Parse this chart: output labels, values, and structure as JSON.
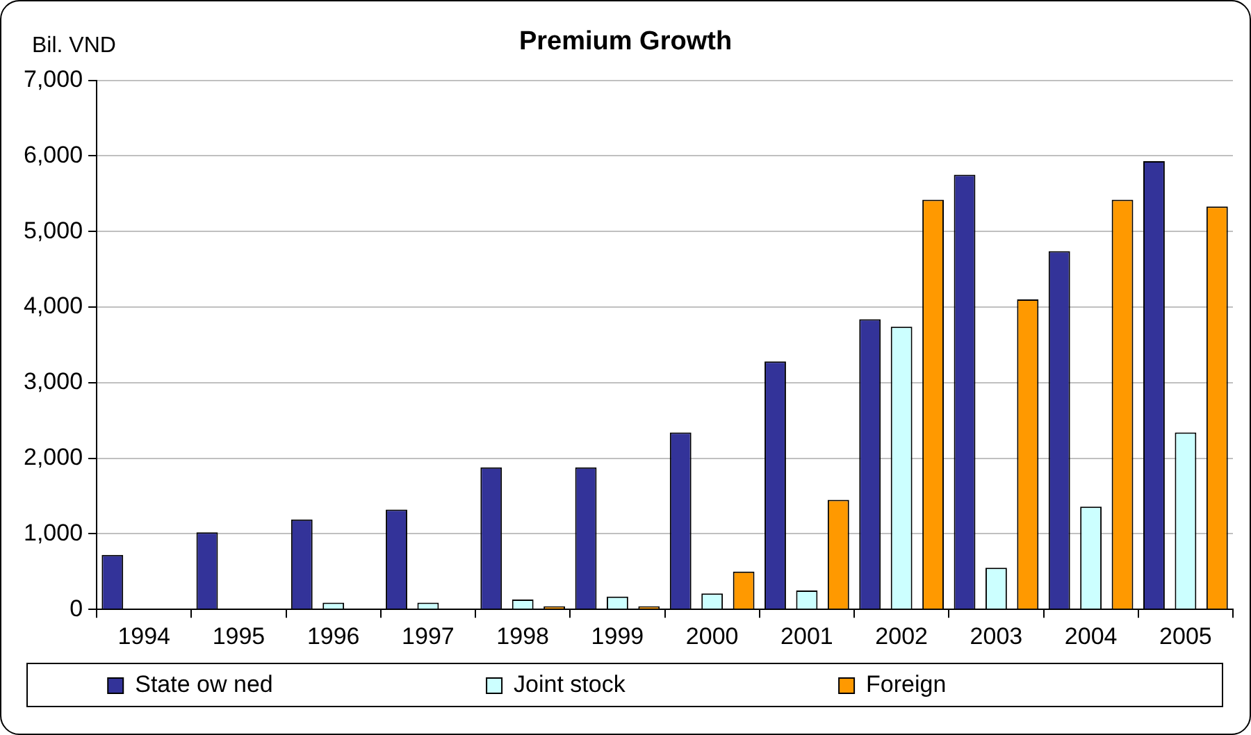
{
  "chart_data": {
    "type": "bar",
    "title": "Premium Growth",
    "ylabel": "Bil. VND",
    "categories": [
      "1994",
      "1995",
      "1996",
      "1997",
      "1998",
      "1999",
      "2000",
      "2001",
      "2002",
      "2003",
      "2004",
      "2005"
    ],
    "series": [
      {
        "name": "State ow ned",
        "color": "#333399",
        "values": [
          720,
          1020,
          1190,
          1320,
          1880,
          1880,
          2340,
          3280,
          3840,
          5750,
          4740,
          5930
        ]
      },
      {
        "name": "Joint stock",
        "color": "#ccffff",
        "values": [
          null,
          null,
          90,
          90,
          130,
          170,
          210,
          250,
          3740,
          550,
          1360,
          2340
        ]
      },
      {
        "name": "Foreign",
        "color": "#ff9900",
        "values": [
          null,
          null,
          null,
          null,
          40,
          40,
          500,
          1450,
          5420,
          4100,
          5420,
          5330
        ]
      }
    ],
    "ylim": [
      0,
      7000
    ],
    "yticks": [
      0,
      {
        "value": 1000,
        "label": "1,000"
      },
      {
        "value": 2000,
        "label": "2,000"
      },
      {
        "value": 3000,
        "label": "3,000"
      },
      {
        "value": 4000,
        "label": "4,000"
      },
      {
        "value": 5000,
        "label": "5,000"
      },
      {
        "value": 6000,
        "label": "6,000"
      },
      {
        "value": 7000,
        "label": "7,000"
      }
    ],
    "grid": "y",
    "legend": "bottom"
  }
}
